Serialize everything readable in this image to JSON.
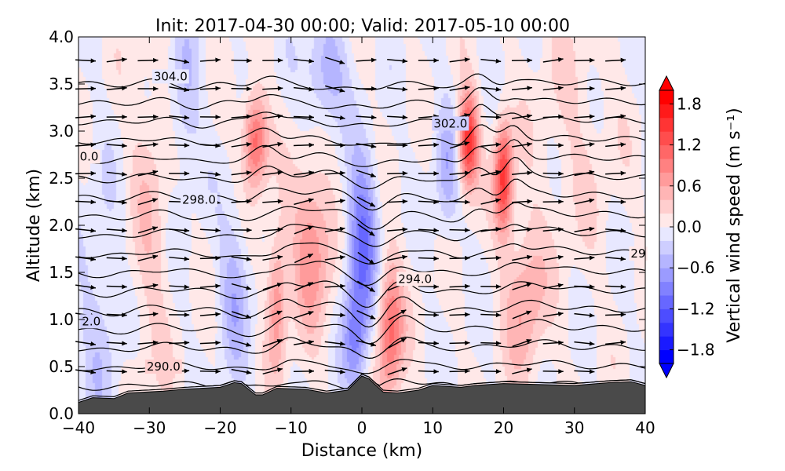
{
  "chart_data": {
    "type": "contour",
    "title": "Init: 2017-04-30 00:00; Valid: 2017-05-10 00:00",
    "xlabel": "Distance (km)",
    "ylabel": "Altitude (km)",
    "xlim": [
      -40,
      40
    ],
    "ylim": [
      0,
      4
    ],
    "xticks": [
      "−40",
      "−30",
      "−20",
      "−10",
      "0",
      "10",
      "20",
      "30",
      "40"
    ],
    "xtick_values": [
      -40,
      -30,
      -20,
      -10,
      0,
      10,
      20,
      30,
      40
    ],
    "yticks": [
      "0.0",
      "0.5",
      "1.0",
      "1.5",
      "2.0",
      "2.5",
      "3.0",
      "3.5",
      "4.0"
    ],
    "ytick_values": [
      0,
      0.5,
      1,
      1.5,
      2,
      2.5,
      3,
      3.5,
      4
    ],
    "colorbar": {
      "label": "Vertical wind speed (m s⁻¹)",
      "range": [
        -2,
        2
      ],
      "step": 0.2,
      "ticks": [
        "1.8",
        "1.2",
        "0.6",
        "0.0",
        "−0.6",
        "−1.2",
        "−1.8"
      ],
      "tick_values": [
        1.8,
        1.2,
        0.6,
        0,
        -0.6,
        -1.2,
        -1.8
      ],
      "neg_color": "#0000ff",
      "pos_color": "#ff0000"
    },
    "w_features": [
      {
        "x": -15,
        "z": 2.9,
        "w": 1.2,
        "sx": 1.2,
        "sz": 0.35
      },
      {
        "x": 15,
        "z": 2.9,
        "w": 1.6,
        "sx": 1.0,
        "sz": 0.35
      },
      {
        "x": 20,
        "z": 2.5,
        "w": 1.5,
        "sx": 0.9,
        "sz": 0.4
      },
      {
        "x": -7,
        "z": 1.8,
        "w": 0.8,
        "sx": 2.0,
        "sz": 0.6
      },
      {
        "x": 4,
        "z": 0.9,
        "w": 1.1,
        "sx": 1.3,
        "sz": 0.5
      },
      {
        "x": -12,
        "z": 1.2,
        "w": 0.8,
        "sx": 1.0,
        "sz": 0.5
      },
      {
        "x": 23,
        "z": 1.2,
        "w": 0.6,
        "sx": 2.0,
        "sz": 0.6
      },
      {
        "x": 0,
        "z": 1.8,
        "w": -1.1,
        "sx": 1.5,
        "sz": 0.6
      },
      {
        "x": -5,
        "z": 3.6,
        "w": -0.6,
        "sx": 2.0,
        "sz": 0.4
      },
      {
        "x": -18,
        "z": 1.3,
        "w": -0.5,
        "sx": 1.5,
        "sz": 0.6
      },
      {
        "x": 12,
        "z": 2.6,
        "w": -0.5,
        "sx": 1.2,
        "sz": 0.5
      },
      {
        "x": -25,
        "z": 3.3,
        "w": -0.4,
        "sx": 1.5,
        "sz": 0.6
      },
      {
        "x": -1,
        "z": 0.8,
        "w": -0.7,
        "sx": 1.2,
        "sz": 0.4
      },
      {
        "x": -30,
        "z": 2.0,
        "w": 0.3,
        "sx": 2,
        "sz": 1.5
      },
      {
        "x": -37,
        "z": 1.0,
        "w": -0.3,
        "sx": 2,
        "sz": 1
      },
      {
        "x": 30,
        "z": 3.0,
        "w": 0.2,
        "sx": 4,
        "sz": 1
      }
    ],
    "isentropes": {
      "min": 288,
      "max": 305,
      "interval": 1,
      "unit": "K"
    },
    "contour_labels": [
      {
        "text": "304.0",
        "x": -27,
        "z": 3.58
      },
      {
        "text": "302.0",
        "x": 12.5,
        "z": 3.08
      },
      {
        "text": "298.0",
        "x": -23,
        "z": 2.27
      },
      {
        "text": "294.0",
        "x": 7.5,
        "z": 1.43
      },
      {
        "text": "290.0",
        "x": -28,
        "z": 0.5
      },
      {
        "text": "0.0",
        "x": -38.5,
        "z": 2.73
      },
      {
        "text": "2.0",
        "x": -38.2,
        "z": 0.98
      },
      {
        "text": "29",
        "x": 39,
        "z": 1.7
      }
    ],
    "terrain": [
      [
        -40,
        0.12
      ],
      [
        -38,
        0.17
      ],
      [
        -35,
        0.16
      ],
      [
        -33,
        0.22
      ],
      [
        -28,
        0.24
      ],
      [
        -25,
        0.26
      ],
      [
        -20,
        0.28
      ],
      [
        -18,
        0.33
      ],
      [
        -17,
        0.32
      ],
      [
        -15,
        0.2
      ],
      [
        -14,
        0.2
      ],
      [
        -12,
        0.27
      ],
      [
        -8,
        0.26
      ],
      [
        -5,
        0.22
      ],
      [
        -2,
        0.25
      ],
      [
        0,
        0.4
      ],
      [
        1,
        0.37
      ],
      [
        3,
        0.23
      ],
      [
        5,
        0.22
      ],
      [
        8,
        0.25
      ],
      [
        10,
        0.3
      ],
      [
        14,
        0.28
      ],
      [
        16,
        0.3
      ],
      [
        20,
        0.32
      ],
      [
        30,
        0.3
      ],
      [
        35,
        0.33
      ],
      [
        38,
        0.34
      ],
      [
        40,
        0.3
      ]
    ]
  }
}
